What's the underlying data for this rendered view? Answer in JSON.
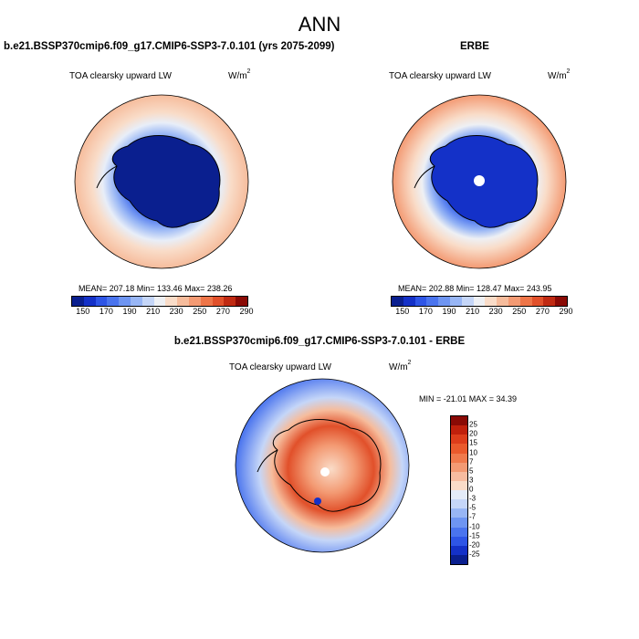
{
  "title": "ANN",
  "panel_left": {
    "subtitle": "b.e21.BSSP370cmip6.f09_g17.CMIP6-SSP3-7.0.101 (yrs 2075-2099)",
    "variable": "TOA clearsky upward LW",
    "units_base": "W/m",
    "units_exp": "2",
    "stats": "MEAN= 207.18  Min= 133.46  Max= 238.26"
  },
  "panel_right": {
    "subtitle": "ERBE",
    "variable": "TOA clearsky upward LW",
    "units_base": "W/m",
    "units_exp": "2",
    "stats": "MEAN= 202.88  Min= 128.47  Max= 243.95"
  },
  "panel_diff": {
    "subtitle": "b.e21.BSSP370cmip6.f09_g17.CMIP6-SSP3-7.0.101 - ERBE",
    "variable": "TOA clearsky upward LW",
    "units_base": "W/m",
    "units_exp": "2",
    "stats": "MIN = -21.01 MAX =  34.39"
  },
  "abs_colorbar": {
    "colors": [
      "#0a1f8f",
      "#1431c8",
      "#2e55e6",
      "#4a74ee",
      "#6e95f2",
      "#98b6f5",
      "#c5d6f8",
      "#eef0f4",
      "#f9dcc8",
      "#f6bc9c",
      "#f39a73",
      "#ee7548",
      "#e1502a",
      "#c02a12",
      "#8a0a05"
    ],
    "tick_labels": [
      "150",
      "170",
      "190",
      "210",
      "230",
      "250",
      "270",
      "290"
    ]
  },
  "diff_colorbar": {
    "colors": [
      "#8a0a05",
      "#c0200c",
      "#dd3d1b",
      "#ea5a2c",
      "#f07a4c",
      "#f39a73",
      "#f7bca0",
      "#fadcc8",
      "#e4ecf8",
      "#c5d6f8",
      "#98b6f5",
      "#6e95f2",
      "#4a74ee",
      "#2e55e6",
      "#1431c8",
      "#0a1f8f"
    ],
    "tick_labels": [
      "25",
      "20",
      "15",
      "10",
      "7",
      "5",
      "3",
      "0",
      "-3",
      "-5",
      "-7",
      "-10",
      "-15",
      "-20",
      "-25"
    ]
  }
}
